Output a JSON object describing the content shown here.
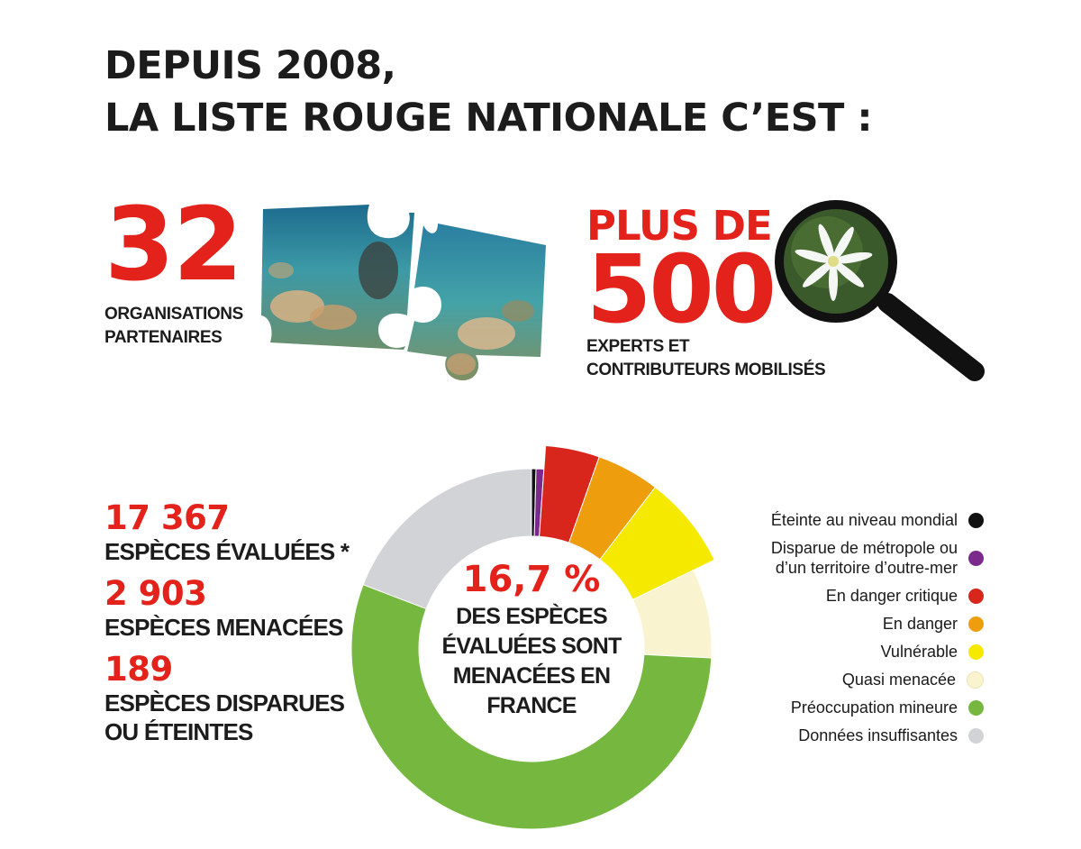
{
  "title": {
    "line1": "DEPUIS 2008,",
    "line2": "LA LISTE ROUGE NATIONALE C’EST :"
  },
  "partners": {
    "number": "32",
    "label_line1": "ORGANISATIONS",
    "label_line2": "PARTENAIRES"
  },
  "experts": {
    "prefix": "PLUS DE",
    "number": "500",
    "label_line1": "EXPERTS ET",
    "label_line2": "CONTRIBUTEURS MOBILISÉS"
  },
  "stats": [
    {
      "value": "17 367",
      "label_line1": "ESPÈCES ÉVALUÉES *",
      "label_line2": ""
    },
    {
      "value": "2 903",
      "label_line1": "ESPÈCES MENACÉES",
      "label_line2": ""
    },
    {
      "value": "189",
      "label_line1": "ESPÈCES DISPARUES",
      "label_line2": "OU ÉTEINTES"
    }
  ],
  "center": {
    "percent": "16,7 %",
    "line1": "DES ESPÈCES",
    "line2": "ÉVALUÉES SONT",
    "line3": "MENACÉES EN",
    "line4": "FRANCE"
  },
  "colors": {
    "accent_red": "#e3231b",
    "text": "#1c1c1c"
  },
  "chart_data": {
    "type": "pie",
    "style": "donut",
    "highlighted_categories": [
      "En danger critique",
      "En danger",
      "Vulnérable"
    ],
    "categories": [
      {
        "name": "Éteinte au niveau mondial",
        "name_line1": "Éteinte au niveau mondial",
        "name_line2": "",
        "value": 0.4,
        "color": "#111111"
      },
      {
        "name": "Disparue de métropole ou d’un territoire d’outre-mer",
        "name_line1": "Disparue de métropole ou",
        "name_line2": "d’un territoire d’outre-mer",
        "value": 0.7,
        "color": "#7b2a8c"
      },
      {
        "name": "En danger critique",
        "name_line1": "En danger critique",
        "name_line2": "",
        "value": 4.3,
        "color": "#d9261c"
      },
      {
        "name": "En danger",
        "name_line1": "En danger",
        "name_line2": "",
        "value": 5.0,
        "color": "#ee9e0d"
      },
      {
        "name": "Vulnérable",
        "name_line1": "Vulnérable",
        "name_line2": "",
        "value": 7.4,
        "color": "#f6e900"
      },
      {
        "name": "Quasi menacée",
        "name_line1": "Quasi menacée",
        "name_line2": "",
        "value": 8.0,
        "color": "#faf3cf"
      },
      {
        "name": "Préoccupation mineure",
        "name_line1": "Préoccupation mineure",
        "name_line2": "",
        "value": 55.0,
        "color": "#76b83f"
      },
      {
        "name": "Données insuffisantes",
        "name_line1": "Données insuffisantes",
        "name_line2": "",
        "value": 19.2,
        "color": "#d2d3d6"
      }
    ]
  }
}
